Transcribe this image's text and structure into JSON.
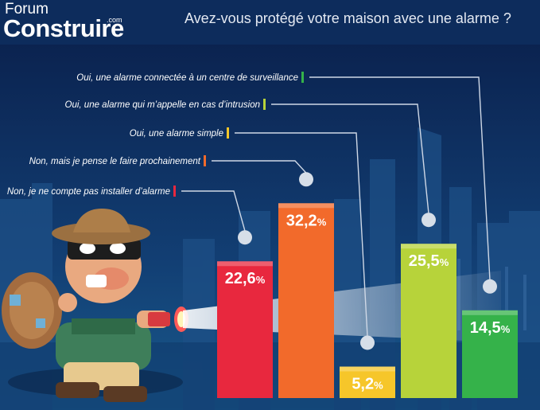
{
  "logo": {
    "top": "Forum",
    "com": ".com",
    "main": "Construire"
  },
  "question": "Avez-vous protégé votre maison avec une alarme ?",
  "colors": {
    "background": "#0b2a5a",
    "header": "#0d2c5c",
    "legend_line": "#cfd8e6",
    "value_text": "#ffffff"
  },
  "chart_data": {
    "type": "bar",
    "title": "Avez-vous protégé votre maison avec une alarme ?",
    "unit": "%",
    "categories": [
      "Non, je ne compte pas installer d’alarme",
      "Non, mais je pense le faire prochainement",
      "Oui, une alarme simple",
      "Oui, une alarme qui m’appelle en cas d’intrusion",
      "Oui, une alarme connectée à un centre de surveillance"
    ],
    "values": [
      22.6,
      32.2,
      5.2,
      25.5,
      14.5
    ],
    "value_labels": [
      "22,6",
      "32,2",
      "5,2",
      "25,5",
      "14,5"
    ],
    "colors": [
      "#e8283e",
      "#f26a2b",
      "#f6c62a",
      "#b7d33a",
      "#35b24a"
    ],
    "legend_order": [
      4,
      3,
      2,
      1,
      0
    ],
    "ylim": [
      0,
      35
    ],
    "grid": false,
    "legend_position": "top-left"
  }
}
